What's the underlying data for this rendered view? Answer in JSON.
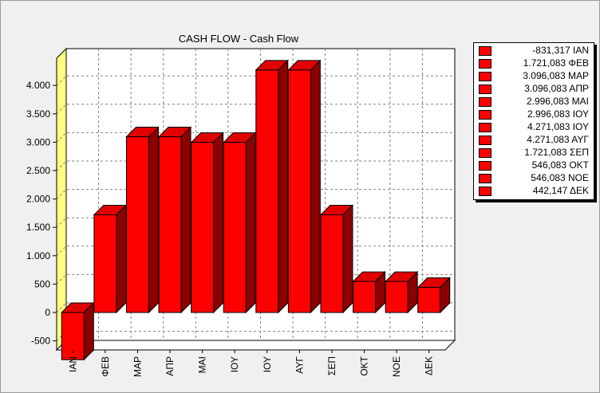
{
  "colors": {
    "bar_front": "#ff0000",
    "bar_top": "#e00000",
    "bar_side": "#8b0000",
    "back_wall": "#ffffff",
    "side_wall": "#ffff80",
    "grid": "#808080"
  },
  "chart_data": {
    "type": "bar",
    "title": "CASH FLOW - Cash Flow",
    "categories": [
      "ΙΑΝ",
      "ΦΕΒ",
      "ΜΑΡ",
      "ΑΠΡ",
      "ΜΑΙ",
      "ΙΟΥ",
      "ΙΟΥ",
      "ΑΥΓ",
      "ΣΕΠ",
      "ΟΚΤ",
      "ΝΟΕ",
      "ΔΕΚ"
    ],
    "values": [
      -831.317,
      1721.083,
      3096.083,
      3096.083,
      2996.083,
      2996.083,
      4271.083,
      4271.083,
      1721.083,
      546.083,
      546.083,
      442.147
    ],
    "y_ticks": [
      -500,
      0,
      500,
      1000,
      1500,
      2000,
      2500,
      3000,
      3500,
      4000
    ],
    "y_tick_labels": [
      "-500",
      "0",
      "500",
      "1.000",
      "1.500",
      "2.000",
      "2.500",
      "3.000",
      "3.500",
      "4.000"
    ],
    "ylim": [
      -850,
      4300
    ],
    "grid": true,
    "legend_position": "right",
    "legend": [
      "-831,317 ΙΑΝ",
      "1.721,083 ΦΕΒ",
      "3.096,083 ΜΑΡ",
      "3.096,083 ΑΠΡ",
      "2.996,083 ΜΑΙ",
      "2.996,083 ΙΟΥ",
      "4.271,083 ΙΟΥ",
      "4.271,083 ΑΥΓ",
      "1.721,083 ΣΕΠ",
      "546,083 ΟΚΤ",
      "546,083 ΝΟΕ",
      "442,147 ΔΕΚ"
    ]
  }
}
